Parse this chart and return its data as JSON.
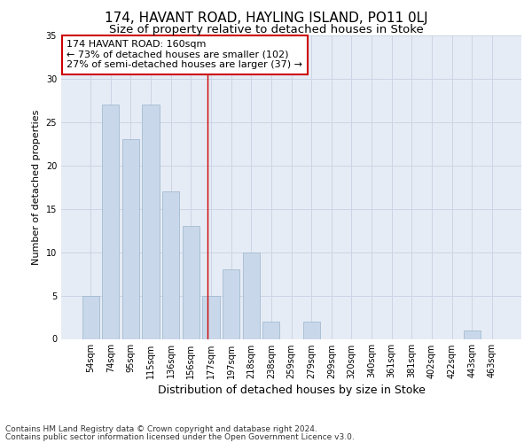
{
  "title": "174, HAVANT ROAD, HAYLING ISLAND, PO11 0LJ",
  "subtitle": "Size of property relative to detached houses in Stoke",
  "xlabel": "Distribution of detached houses by size in Stoke",
  "ylabel": "Number of detached properties",
  "categories": [
    "54sqm",
    "74sqm",
    "95sqm",
    "115sqm",
    "136sqm",
    "156sqm",
    "177sqm",
    "197sqm",
    "218sqm",
    "238sqm",
    "259sqm",
    "279sqm",
    "299sqm",
    "320sqm",
    "340sqm",
    "361sqm",
    "381sqm",
    "402sqm",
    "422sqm",
    "443sqm",
    "463sqm"
  ],
  "values": [
    5,
    27,
    23,
    27,
    17,
    13,
    5,
    8,
    10,
    2,
    0,
    2,
    0,
    0,
    0,
    0,
    0,
    0,
    0,
    1,
    0
  ],
  "bar_color": "#c8d8ea",
  "bar_edgecolor": "#9ab4cc",
  "bar_linewidth": 0.5,
  "vline_x": 5.82,
  "vline_color": "#cc0000",
  "annotation_line1": "174 HAVANT ROAD: 160sqm",
  "annotation_line2": "← 73% of detached houses are smaller (102)",
  "annotation_line3": "27% of semi-detached houses are larger (37) →",
  "annotation_box_color": "#ffffff",
  "annotation_box_edgecolor": "#cc0000",
  "ylim": [
    0,
    35
  ],
  "yticks": [
    0,
    5,
    10,
    15,
    20,
    25,
    30,
    35
  ],
  "grid_color": "#ccd5e5",
  "background_color": "#e6ecf5",
  "footer1": "Contains HM Land Registry data © Crown copyright and database right 2024.",
  "footer2": "Contains public sector information licensed under the Open Government Licence v3.0.",
  "title_fontsize": 11,
  "subtitle_fontsize": 9.5,
  "xlabel_fontsize": 9,
  "ylabel_fontsize": 8,
  "tick_fontsize": 7,
  "annotation_fontsize": 8,
  "footer_fontsize": 6.5
}
